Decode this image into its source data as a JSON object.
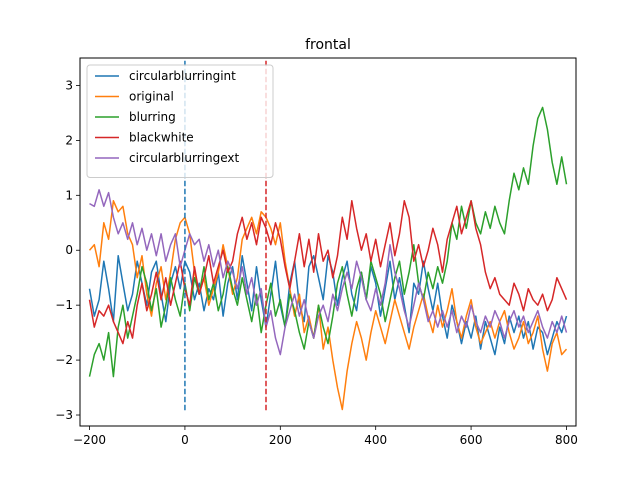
{
  "chart_data": {
    "type": "line",
    "title": "frontal",
    "xlabel": "",
    "ylabel": "",
    "xlim": [
      -220,
      820
    ],
    "ylim": [
      -3.2,
      3.5
    ],
    "xticks": [
      -200,
      0,
      200,
      400,
      600,
      800
    ],
    "yticks": [
      -3,
      -2,
      -1,
      0,
      1,
      2,
      3
    ],
    "grid": false,
    "legend_position": "top-left",
    "vlines": [
      {
        "x": 0,
        "ymin": -2.95,
        "ymax": 3.45,
        "color": "#1f77b4",
        "style": "dashed"
      },
      {
        "x": 170,
        "ymin": -2.95,
        "ymax": 3.45,
        "color": "#d62728",
        "style": "dashed"
      }
    ],
    "series": [
      {
        "name": "circularblurringint",
        "color": "#1f77b4",
        "x": [
          -200,
          -190,
          -180,
          -170,
          -160,
          -150,
          -140,
          -130,
          -120,
          -110,
          -100,
          -90,
          -80,
          -70,
          -60,
          -50,
          -40,
          -30,
          -20,
          -10,
          0,
          10,
          20,
          30,
          40,
          50,
          60,
          70,
          80,
          90,
          100,
          110,
          120,
          130,
          140,
          150,
          160,
          170,
          180,
          190,
          200,
          210,
          220,
          230,
          240,
          250,
          260,
          270,
          280,
          290,
          300,
          310,
          320,
          330,
          340,
          350,
          360,
          370,
          380,
          390,
          400,
          410,
          420,
          430,
          440,
          450,
          460,
          470,
          480,
          490,
          500,
          510,
          520,
          530,
          540,
          550,
          560,
          570,
          580,
          590,
          600,
          610,
          620,
          630,
          640,
          650,
          660,
          670,
          680,
          690,
          700,
          710,
          720,
          730,
          740,
          750,
          760,
          770,
          780,
          790,
          800
        ],
        "y": [
          -0.7,
          -1.2,
          -0.9,
          -0.2,
          -0.7,
          -1.3,
          -0.1,
          -0.6,
          -1.1,
          -0.8,
          -0.2,
          -0.6,
          -1.0,
          -0.4,
          -0.2,
          -0.8,
          -1.3,
          -0.6,
          -0.3,
          -0.7,
          -0.2,
          -0.4,
          -0.9,
          -0.6,
          -1.1,
          -0.7,
          -0.9,
          -0.4,
          -1.2,
          -0.6,
          -0.3,
          -0.9,
          -0.1,
          -0.6,
          -1.1,
          -0.3,
          -0.9,
          -1.4,
          -0.8,
          -0.2,
          -1.0,
          -1.4,
          -0.6,
          -0.2,
          -1.0,
          -1.3,
          -0.3,
          -0.1,
          -0.5,
          -0.9,
          -0.1,
          -0.4,
          -1.0,
          -0.5,
          -0.2,
          -0.8,
          -1.1,
          -0.4,
          -0.9,
          -0.3,
          -0.6,
          -1.2,
          -0.7,
          -0.2,
          -0.9,
          -0.5,
          -1.0,
          -1.5,
          -0.6,
          -0.8,
          -0.2,
          -0.7,
          -1.1,
          -0.6,
          -1.2,
          -1.6,
          -1.0,
          -1.3,
          -1.7,
          -1.3,
          -1.6,
          -1.2,
          -1.8,
          -1.3,
          -1.6,
          -1.9,
          -1.4,
          -1.7,
          -1.2,
          -1.5,
          -1.2,
          -1.6,
          -1.3,
          -1.8,
          -1.4,
          -1.5,
          -1.9,
          -1.6,
          -1.3,
          -1.5,
          -1.2
        ]
      },
      {
        "name": "original",
        "color": "#ff7f0e",
        "x": [
          -200,
          -190,
          -180,
          -170,
          -160,
          -150,
          -140,
          -130,
          -120,
          -110,
          -100,
          -90,
          -80,
          -70,
          -60,
          -50,
          -40,
          -30,
          -20,
          -10,
          0,
          10,
          20,
          30,
          40,
          50,
          60,
          70,
          80,
          90,
          100,
          110,
          120,
          130,
          140,
          150,
          160,
          170,
          180,
          190,
          200,
          210,
          220,
          230,
          240,
          250,
          260,
          270,
          280,
          290,
          300,
          310,
          320,
          330,
          340,
          350,
          360,
          370,
          380,
          390,
          400,
          410,
          420,
          430,
          440,
          450,
          460,
          470,
          480,
          490,
          500,
          510,
          520,
          530,
          540,
          550,
          560,
          570,
          580,
          590,
          600,
          610,
          620,
          630,
          640,
          650,
          660,
          670,
          680,
          690,
          700,
          710,
          720,
          730,
          740,
          750,
          760,
          770,
          780,
          790,
          800
        ],
        "y": [
          0.0,
          0.1,
          -0.3,
          0.5,
          0.2,
          0.9,
          0.7,
          0.8,
          0.3,
          0.1,
          -0.5,
          -0.1,
          -0.8,
          -1.2,
          -0.6,
          -0.3,
          -0.9,
          -0.4,
          0.2,
          0.5,
          0.6,
          0.3,
          -0.4,
          -0.8,
          -0.5,
          -1.0,
          -0.7,
          -0.4,
          0.1,
          -0.3,
          -0.8,
          -0.5,
          0.2,
          0.4,
          0.6,
          0.3,
          0.7,
          0.6,
          0.4,
          0.1,
          0.5,
          -0.2,
          -0.7,
          -1.2,
          -0.8,
          -1.5,
          -1.2,
          -1.6,
          -1.0,
          -1.8,
          -1.4,
          -2.0,
          -2.5,
          -2.9,
          -2.2,
          -1.7,
          -1.3,
          -1.6,
          -2.0,
          -1.5,
          -1.1,
          -1.4,
          -1.7,
          -1.3,
          -0.9,
          -1.2,
          -1.5,
          -1.8,
          -1.4,
          -1.1,
          -0.8,
          -1.2,
          -1.5,
          -1.0,
          -1.4,
          -1.1,
          -0.7,
          -1.3,
          -1.6,
          -1.2,
          -0.9,
          -1.4,
          -1.7,
          -1.5,
          -1.3,
          -1.6,
          -1.3,
          -1.1,
          -1.5,
          -1.8,
          -1.6,
          -1.3,
          -1.7,
          -1.5,
          -1.2,
          -1.8,
          -2.2,
          -1.7,
          -1.5,
          -1.9,
          -1.8
        ]
      },
      {
        "name": "blurring",
        "color": "#2ca02c",
        "x": [
          -200,
          -190,
          -180,
          -170,
          -160,
          -150,
          -140,
          -130,
          -120,
          -110,
          -100,
          -90,
          -80,
          -70,
          -60,
          -50,
          -40,
          -30,
          -20,
          -10,
          0,
          10,
          20,
          30,
          40,
          50,
          60,
          70,
          80,
          90,
          100,
          110,
          120,
          130,
          140,
          150,
          160,
          170,
          180,
          190,
          200,
          210,
          220,
          230,
          240,
          250,
          260,
          270,
          280,
          290,
          300,
          310,
          320,
          330,
          340,
          350,
          360,
          370,
          380,
          390,
          400,
          410,
          420,
          430,
          440,
          450,
          460,
          470,
          480,
          490,
          500,
          510,
          520,
          530,
          540,
          550,
          560,
          570,
          580,
          590,
          600,
          610,
          620,
          630,
          640,
          650,
          660,
          670,
          680,
          690,
          700,
          710,
          720,
          730,
          740,
          750,
          760,
          770,
          780,
          790,
          800
        ],
        "y": [
          -2.3,
          -1.9,
          -1.7,
          -2.0,
          -1.5,
          -2.3,
          -1.4,
          -1.0,
          -1.6,
          -1.2,
          -0.8,
          -0.3,
          -0.6,
          -1.1,
          -0.7,
          -1.4,
          -1.0,
          -0.5,
          -0.9,
          -1.2,
          -0.6,
          -1.1,
          -0.5,
          -0.8,
          -0.3,
          -0.9,
          -0.6,
          -1.1,
          -0.8,
          -0.3,
          -0.7,
          -1.0,
          -0.5,
          -0.9,
          -1.3,
          -0.8,
          -1.5,
          -1.0,
          -0.6,
          -1.2,
          -0.9,
          -1.4,
          -0.8,
          -1.1,
          -1.5,
          -1.8,
          -1.3,
          -1.6,
          -1.0,
          -1.4,
          -1.7,
          -1.2,
          -0.6,
          -0.3,
          -0.8,
          -1.2,
          -0.7,
          -0.4,
          -0.9,
          -0.2,
          -0.5,
          -0.8,
          -1.3,
          -0.9,
          -0.5,
          -0.2,
          -0.8,
          -0.4,
          0.1,
          -0.6,
          -0.9,
          -0.4,
          -0.7,
          -0.3,
          -0.6,
          -0.2,
          0.5,
          0.2,
          0.8,
          0.4,
          0.9,
          0.5,
          0.3,
          0.7,
          0.4,
          0.8,
          0.5,
          0.3,
          0.9,
          1.4,
          1.1,
          1.5,
          1.2,
          1.9,
          2.4,
          2.6,
          2.2,
          1.6,
          1.2,
          1.7,
          1.2
        ]
      },
      {
        "name": "blackwhite",
        "color": "#d62728",
        "x": [
          -200,
          -190,
          -180,
          -170,
          -160,
          -150,
          -140,
          -130,
          -120,
          -110,
          -100,
          -90,
          -80,
          -70,
          -60,
          -50,
          -40,
          -30,
          -20,
          -10,
          0,
          10,
          20,
          30,
          40,
          50,
          60,
          70,
          80,
          90,
          100,
          110,
          120,
          130,
          140,
          150,
          160,
          170,
          180,
          190,
          200,
          210,
          220,
          230,
          240,
          250,
          260,
          270,
          280,
          290,
          300,
          310,
          320,
          330,
          340,
          350,
          360,
          370,
          380,
          390,
          400,
          410,
          420,
          430,
          440,
          450,
          460,
          470,
          480,
          490,
          500,
          510,
          520,
          530,
          540,
          550,
          560,
          570,
          580,
          590,
          600,
          610,
          620,
          630,
          640,
          650,
          660,
          670,
          680,
          690,
          700,
          710,
          720,
          730,
          740,
          750,
          760,
          770,
          780,
          790,
          800
        ],
        "y": [
          -0.9,
          -1.4,
          -1.1,
          -1.2,
          -1.0,
          -1.3,
          -1.5,
          -1.7,
          -1.3,
          -1.6,
          -1.0,
          -0.6,
          -1.1,
          -0.8,
          -0.4,
          -0.9,
          -0.5,
          -1.0,
          -0.6,
          -0.2,
          -0.7,
          -1.0,
          -0.3,
          -0.8,
          -0.5,
          -0.1,
          -0.6,
          -0.3,
          0.0,
          -0.4,
          -0.2,
          0.3,
          0.6,
          0.2,
          0.5,
          0.1,
          0.6,
          0.4,
          0.1,
          0.5,
          0.2,
          -0.3,
          -0.7,
          -0.2,
          0.3,
          -0.3,
          0.2,
          -0.4,
          0.3,
          -0.2,
          0.0,
          -0.5,
          -0.1,
          0.6,
          0.2,
          0.9,
          0.4,
          0.0,
          0.3,
          -0.2,
          0.2,
          -0.3,
          0.1,
          0.5,
          -0.1,
          0.3,
          0.9,
          0.6,
          -0.2,
          0.1,
          -0.3,
          0.0,
          0.4,
          0.1,
          -0.4,
          0.2,
          0.5,
          0.8,
          0.3,
          0.6,
          0.9,
          0.4,
          0.1,
          -0.4,
          -0.7,
          -0.5,
          -0.8,
          -0.9,
          -1.0,
          -0.6,
          -0.8,
          -1.1,
          -0.7,
          -0.9,
          -1.0,
          -0.8,
          -1.1,
          -0.9,
          -0.5,
          -0.7,
          -0.9
        ]
      },
      {
        "name": "circularblurringext",
        "color": "#9467bd",
        "x": [
          -200,
          -190,
          -180,
          -170,
          -160,
          -150,
          -140,
          -130,
          -120,
          -110,
          -100,
          -90,
          -80,
          -70,
          -60,
          -50,
          -40,
          -30,
          -20,
          -10,
          0,
          10,
          20,
          30,
          40,
          50,
          60,
          70,
          80,
          90,
          100,
          110,
          120,
          130,
          140,
          150,
          160,
          170,
          180,
          190,
          200,
          210,
          220,
          230,
          240,
          250,
          260,
          270,
          280,
          290,
          300,
          310,
          320,
          330,
          340,
          350,
          360,
          370,
          380,
          390,
          400,
          410,
          420,
          430,
          440,
          450,
          460,
          470,
          480,
          490,
          500,
          510,
          520,
          530,
          540,
          550,
          560,
          570,
          580,
          590,
          600,
          610,
          620,
          630,
          640,
          650,
          660,
          670,
          680,
          690,
          700,
          710,
          720,
          730,
          740,
          750,
          760,
          770,
          780,
          790,
          800
        ],
        "y": [
          0.85,
          0.8,
          1.1,
          0.8,
          1.05,
          0.6,
          0.3,
          0.5,
          0.2,
          0.5,
          0.1,
          0.4,
          0.0,
          0.3,
          -0.1,
          0.3,
          -0.2,
          0.1,
          0.3,
          -0.3,
          0.0,
          0.3,
          0.1,
          0.2,
          -0.2,
          0.1,
          -0.3,
          0.0,
          -0.5,
          -0.2,
          -0.4,
          -0.7,
          -0.3,
          -0.8,
          -0.5,
          -1.0,
          -0.7,
          -1.4,
          -1.1,
          -1.6,
          -1.9,
          -1.4,
          -1.1,
          -0.8,
          -1.2,
          -0.9,
          -1.3,
          -1.6,
          -1.2,
          -1.0,
          -1.3,
          -0.8,
          -1.1,
          -0.7,
          -0.4,
          -0.7,
          -0.2,
          -0.5,
          -0.9,
          -1.1,
          -0.7,
          -1.0,
          -0.6,
          0.1,
          -0.4,
          -0.7,
          -1.1,
          -1.4,
          -1.0,
          -0.6,
          -0.9,
          -1.3,
          -1.1,
          -1.4,
          -1.1,
          -1.4,
          -1.1,
          -1.5,
          -1.2,
          -1.4,
          -1.0,
          -1.3,
          -1.5,
          -1.2,
          -1.4,
          -1.1,
          -1.3,
          -1.6,
          -1.3,
          -1.1,
          -1.4,
          -1.2,
          -1.5,
          -1.3,
          -1.1,
          -1.4,
          -1.6,
          -1.3,
          -1.5,
          -1.2,
          -1.5
        ]
      }
    ]
  }
}
